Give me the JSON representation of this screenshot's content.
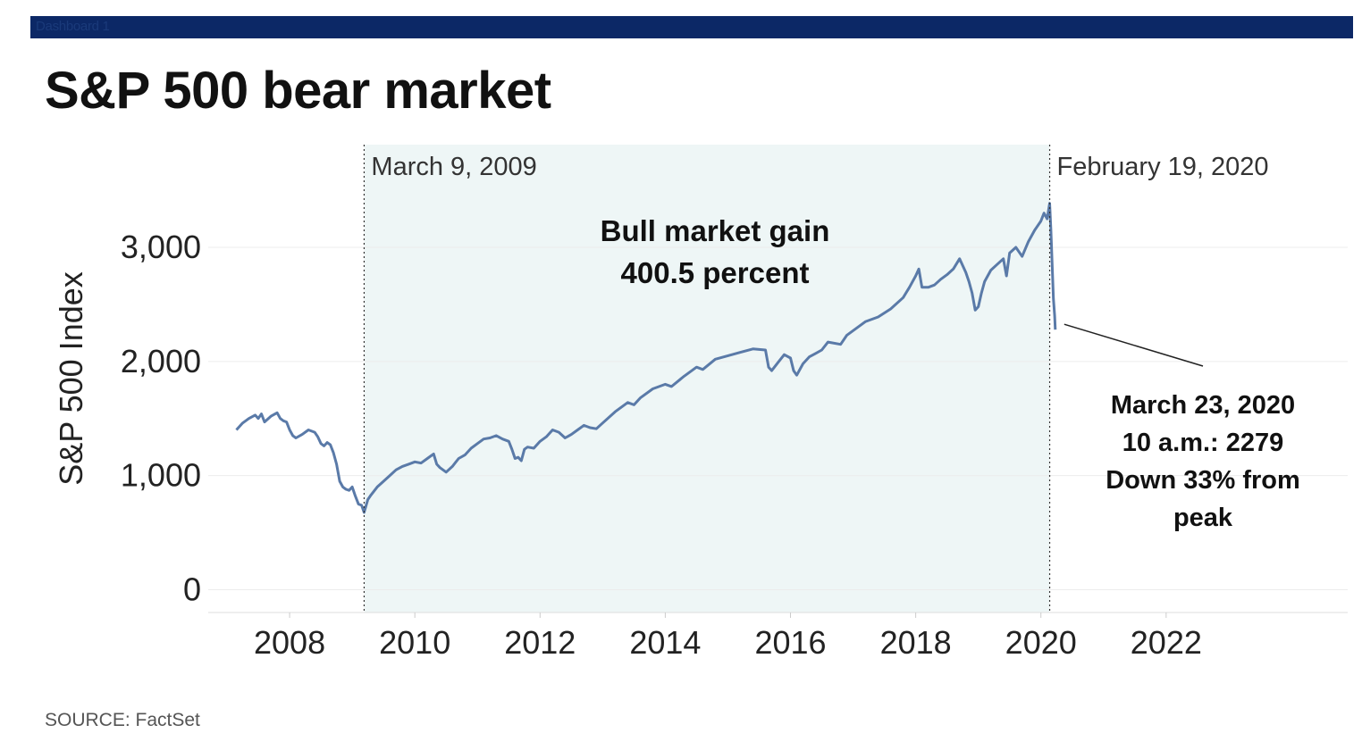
{
  "header": {
    "dashboard_label": "Dashboard 1",
    "bar_color": "#0c2866"
  },
  "title": "S&P 500 bear market",
  "source": "SOURCE: FactSet",
  "colors": {
    "line": "#5a7aa8",
    "shade": "#eef6f6",
    "grid": "#ececec",
    "text": "#222222"
  },
  "chart_data": {
    "type": "line",
    "title": "S&P 500 bear market",
    "ylabel": "S&P 500 Index",
    "xlabel": "",
    "xlim": [
      2006.7,
      2024.9
    ],
    "ylim": [
      -200,
      3900
    ],
    "x_ticks": [
      2008,
      2010,
      2012,
      2014,
      2016,
      2018,
      2020,
      2022
    ],
    "x_tick_labels": [
      "2008",
      "2010",
      "2012",
      "2014",
      "2016",
      "2018",
      "2020",
      "2022"
    ],
    "y_ticks": [
      0,
      1000,
      2000,
      3000
    ],
    "y_tick_labels": [
      "0",
      "1,000",
      "2,000",
      "3,000"
    ],
    "grid": "horizontal",
    "shaded_region": {
      "from": 2009.19,
      "to": 2020.14
    },
    "series": [
      {
        "x": [
          2007.15,
          2007.25,
          2007.35,
          2007.45,
          2007.5,
          2007.55,
          2007.6,
          2007.7,
          2007.8,
          2007.85,
          2007.9,
          2007.95,
          2008.0,
          2008.05,
          2008.1,
          2008.2,
          2008.3,
          2008.4,
          2008.45,
          2008.5,
          2008.55,
          2008.6,
          2008.65,
          2008.7,
          2008.75,
          2008.8,
          2008.85,
          2008.9,
          2008.95,
          2009.0,
          2009.05,
          2009.1,
          2009.15,
          2009.19,
          2009.25,
          2009.3,
          2009.4,
          2009.5,
          2009.6,
          2009.7,
          2009.8,
          2009.9,
          2010.0,
          2010.1,
          2010.2,
          2010.3,
          2010.35,
          2010.4,
          2010.5,
          2010.6,
          2010.7,
          2010.8,
          2010.9,
          2011.0,
          2011.1,
          2011.2,
          2011.3,
          2011.4,
          2011.5,
          2011.55,
          2011.6,
          2011.65,
          2011.7,
          2011.75,
          2011.8,
          2011.9,
          2012.0,
          2012.1,
          2012.2,
          2012.3,
          2012.4,
          2012.5,
          2012.6,
          2012.7,
          2012.8,
          2012.9,
          2013.0,
          2013.2,
          2013.4,
          2013.5,
          2013.6,
          2013.8,
          2014.0,
          2014.1,
          2014.3,
          2014.5,
          2014.6,
          2014.8,
          2015.0,
          2015.2,
          2015.4,
          2015.6,
          2015.65,
          2015.7,
          2015.8,
          2015.9,
          2016.0,
          2016.05,
          2016.1,
          2016.2,
          2016.3,
          2016.4,
          2016.5,
          2016.6,
          2016.8,
          2016.9,
          2017.0,
          2017.2,
          2017.4,
          2017.6,
          2017.8,
          2017.9,
          2018.0,
          2018.05,
          2018.1,
          2018.2,
          2018.3,
          2018.4,
          2018.5,
          2018.6,
          2018.7,
          2018.8,
          2018.85,
          2018.9,
          2018.95,
          2019.0,
          2019.05,
          2019.1,
          2019.2,
          2019.3,
          2019.4,
          2019.45,
          2019.5,
          2019.6,
          2019.7,
          2019.8,
          2019.9,
          2020.0,
          2020.05,
          2020.1,
          2020.14,
          2020.16,
          2020.18,
          2020.2,
          2020.22,
          2020.23
        ],
        "y": [
          1400,
          1460,
          1500,
          1530,
          1500,
          1540,
          1470,
          1520,
          1550,
          1500,
          1480,
          1470,
          1400,
          1350,
          1330,
          1360,
          1400,
          1380,
          1340,
          1280,
          1260,
          1290,
          1270,
          1200,
          1100,
          950,
          900,
          880,
          870,
          900,
          820,
          750,
          740,
          677,
          790,
          830,
          900,
          950,
          1000,
          1050,
          1080,
          1100,
          1120,
          1110,
          1150,
          1190,
          1100,
          1070,
          1030,
          1080,
          1150,
          1180,
          1240,
          1280,
          1320,
          1330,
          1350,
          1320,
          1300,
          1230,
          1150,
          1160,
          1130,
          1230,
          1250,
          1240,
          1300,
          1340,
          1400,
          1380,
          1330,
          1360,
          1400,
          1440,
          1420,
          1410,
          1460,
          1560,
          1640,
          1620,
          1680,
          1760,
          1800,
          1780,
          1870,
          1950,
          1930,
          2020,
          2050,
          2080,
          2110,
          2100,
          1950,
          1920,
          1990,
          2060,
          2030,
          1920,
          1880,
          1980,
          2040,
          2070,
          2100,
          2170,
          2150,
          2230,
          2270,
          2350,
          2390,
          2460,
          2560,
          2650,
          2750,
          2810,
          2650,
          2650,
          2670,
          2720,
          2760,
          2810,
          2900,
          2780,
          2700,
          2600,
          2450,
          2480,
          2600,
          2700,
          2800,
          2850,
          2900,
          2750,
          2950,
          3000,
          2920,
          3050,
          3150,
          3230,
          3300,
          3250,
          3386,
          3150,
          2850,
          2550,
          2400,
          2279
        ]
      }
    ],
    "annotations": {
      "start_marker": {
        "x": 2009.19,
        "label": "March 9, 2009"
      },
      "end_marker": {
        "x": 2020.14,
        "label": "February 19, 2020"
      },
      "gain_text": [
        "Bull market gain",
        "400.5 percent"
      ],
      "callout_text": [
        "March 23, 2020",
        "10 a.m.: 2279",
        "Down 33% from",
        "peak"
      ]
    }
  }
}
